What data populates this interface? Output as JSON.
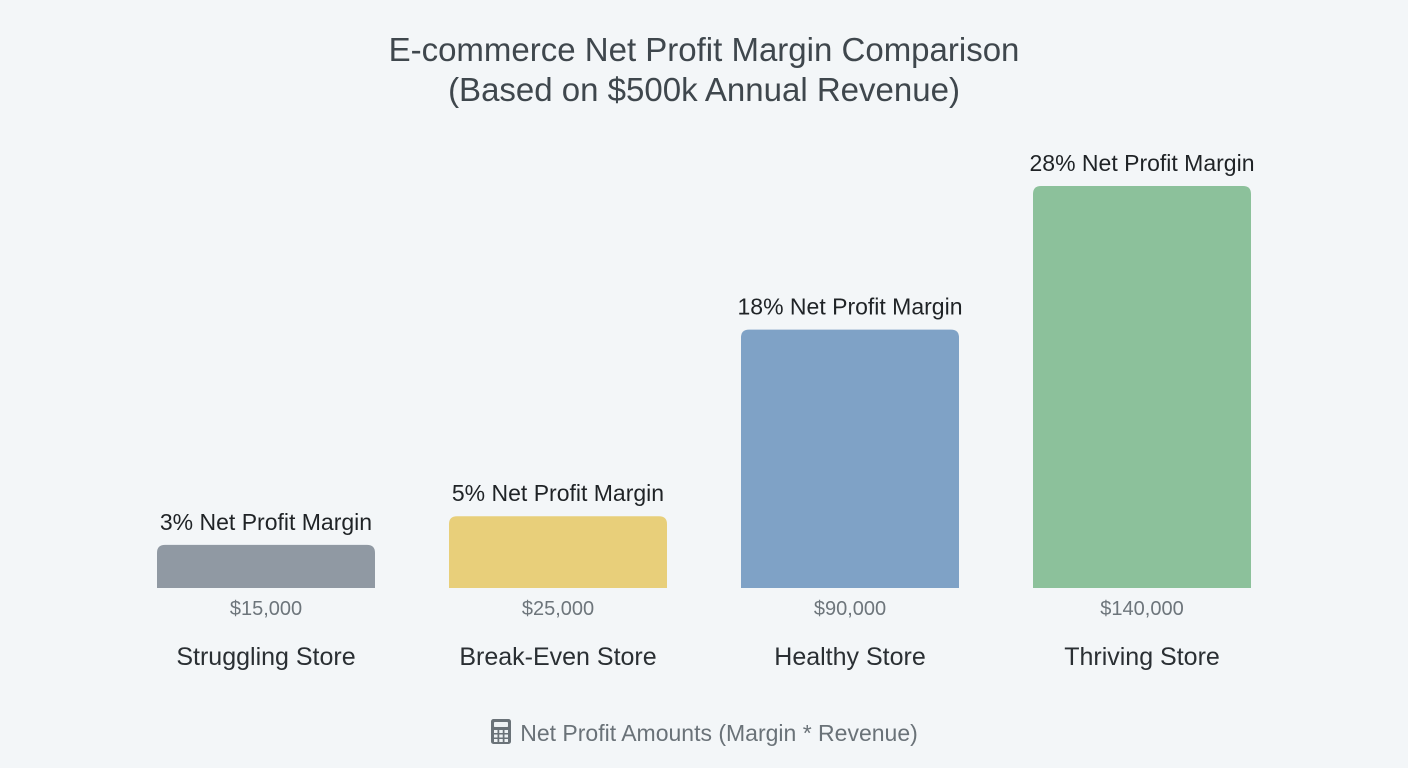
{
  "chart_data": {
    "type": "bar",
    "title_lines": [
      "E-commerce Net Profit Margin Comparison",
      "(Based on $500k Annual Revenue)"
    ],
    "categories": [
      "Struggling Store",
      "Break-Even Store",
      "Healthy Store",
      "Thriving Store"
    ],
    "margins_percent": [
      3,
      5,
      18,
      28
    ],
    "bar_labels": [
      "3% Net Profit Margin",
      "5% Net Profit Margin",
      "18% Net Profit Margin",
      "28% Net Profit Margin"
    ],
    "values": [
      15000,
      25000,
      90000,
      140000
    ],
    "value_labels": [
      "$15,000",
      "$25,000",
      "$90,000",
      "$140,000"
    ],
    "bar_colors": [
      "#9099a3",
      "#e8cf7a",
      "#7fa2c6",
      "#8cc19b"
    ],
    "grid": false,
    "ylim": [
      0,
      140000
    ]
  },
  "footnote": {
    "icon": "calculator-icon",
    "text": "Net Profit Amounts (Margin * Revenue)"
  }
}
